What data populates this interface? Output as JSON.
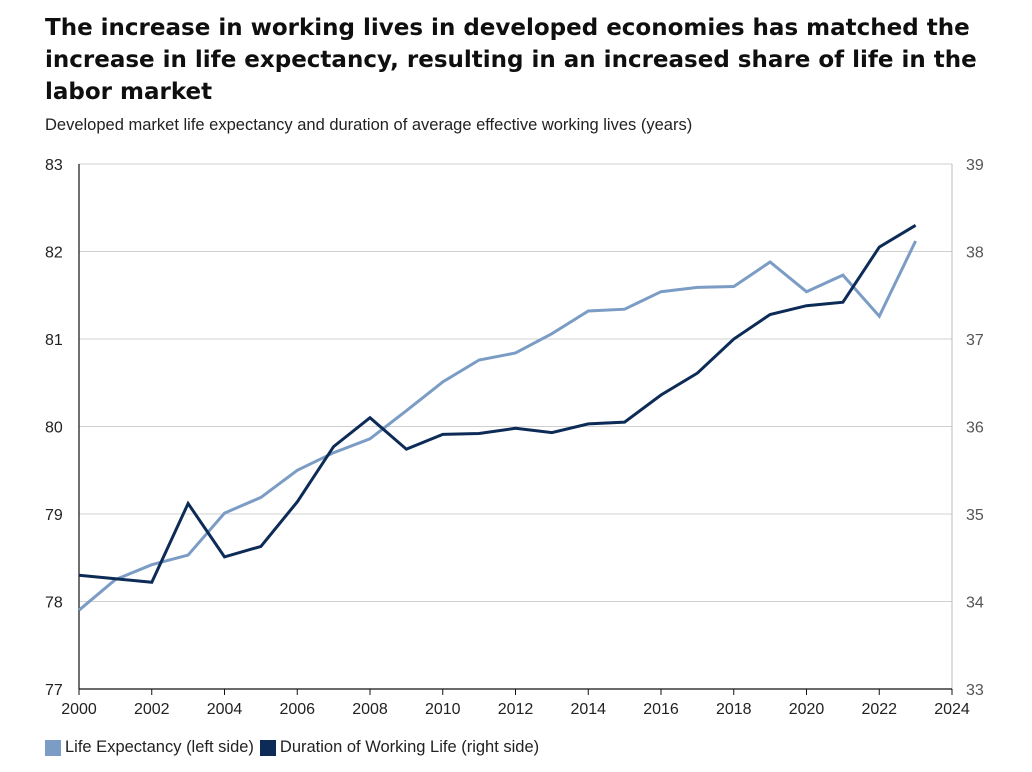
{
  "title": "The increase in working lives in developed economies has matched the increase in life expectancy, resulting in an increased share of life in the labor market",
  "subtitle": "Developed market life expectancy and duration of average effective working lives (years)",
  "colors": {
    "life": "#7b9cc4",
    "work": "#0d2b57",
    "grid": "#d0d0d0",
    "axis": "#111111"
  },
  "chart_data": {
    "type": "line",
    "title": "The increase in working lives in developed economies has matched the increase in life expectancy, resulting in an increased share of life in the labor market",
    "subtitle": "Developed market life expectancy and duration of average effective working lives (years)",
    "x": [
      2000,
      2001,
      2002,
      2003,
      2004,
      2005,
      2006,
      2007,
      2008,
      2009,
      2010,
      2011,
      2012,
      2013,
      2014,
      2015,
      2016,
      2017,
      2018,
      2019,
      2020,
      2021,
      2022,
      2023
    ],
    "xlim": [
      2000,
      2024
    ],
    "xticks": [
      2000,
      2002,
      2004,
      2006,
      2008,
      2010,
      2012,
      2014,
      2016,
      2018,
      2020,
      2022,
      2024
    ],
    "y_left": {
      "lim": [
        77,
        83
      ],
      "ticks": [
        77,
        78,
        79,
        80,
        81,
        82,
        83
      ]
    },
    "y_right": {
      "lim": [
        33,
        39
      ],
      "ticks": [
        33,
        34,
        35,
        36,
        37,
        38,
        39
      ]
    },
    "grid": true,
    "legend_position": "bottom-left",
    "series": [
      {
        "name": "Life Expectancy (left side)",
        "axis": "left",
        "values": [
          77.9,
          78.25,
          78.42,
          78.53,
          79.01,
          79.19,
          79.5,
          79.7,
          79.86,
          80.18,
          80.51,
          80.76,
          80.84,
          81.06,
          81.32,
          81.34,
          81.54,
          81.59,
          81.6,
          81.88,
          81.54,
          81.73,
          81.26,
          82.12
        ]
      },
      {
        "name": "Duration of Working Life (right side)",
        "axis": "right",
        "values": [
          34.3,
          34.26,
          34.22,
          35.12,
          34.51,
          34.63,
          35.14,
          35.77,
          36.1,
          35.74,
          35.91,
          35.92,
          35.98,
          35.93,
          36.03,
          36.05,
          36.36,
          36.61,
          37.0,
          37.28,
          37.38,
          37.42,
          38.05,
          38.3
        ]
      }
    ]
  }
}
